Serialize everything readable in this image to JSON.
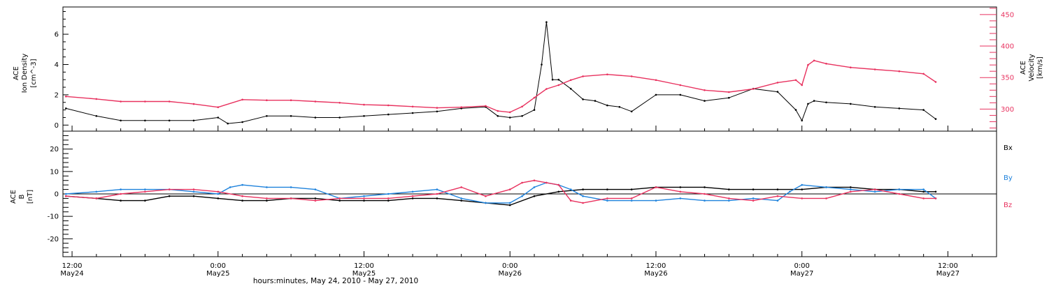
{
  "x_axis": {
    "title": "hours:minutes, May 24, 2010 - May 27, 2010",
    "ticks": [
      {
        "time": "12:00",
        "day": "May24",
        "hour": 12
      },
      {
        "time": "0:00",
        "day": "May25",
        "hour": 24
      },
      {
        "time": "12:00",
        "day": "May25",
        "hour": 36
      },
      {
        "time": "0:00",
        "day": "May26",
        "hour": 48
      },
      {
        "time": "12:00",
        "day": "May26",
        "hour": 60
      },
      {
        "time": "0:00",
        "day": "May27",
        "hour": 72
      },
      {
        "time": "12:00",
        "day": "May27",
        "hour": 84
      }
    ]
  },
  "chart_data": [
    {
      "type": "scatter",
      "panel": "plasma",
      "xlim_hours": [
        11.25,
        88
      ],
      "x_unit": "hours since 2010-05-24 00:00 UT",
      "left_axis": {
        "label_lines": [
          "ACE",
          "Ion Density"
        ],
        "unit": "[cm^-3]",
        "ylim": [
          -0.4,
          7.8
        ],
        "ticks": [
          0,
          2,
          4,
          6
        ]
      },
      "right_axis": {
        "label_lines": [
          "ACE",
          "Velocity"
        ],
        "unit": "[km/s]",
        "ylim": [
          265,
          462
        ],
        "ticks": [
          300,
          350,
          400,
          450
        ],
        "color": "#e8325f"
      },
      "series": [
        {
          "quantity": "ion density",
          "axis": "left",
          "color": "#000000",
          "x": [
            11.5,
            14,
            16,
            18,
            20,
            22,
            24,
            24.8,
            26,
            28,
            30,
            32,
            34,
            36,
            38,
            40,
            42,
            44,
            46,
            47,
            48,
            49,
            50,
            50.6,
            51,
            51.5,
            52,
            53,
            54,
            55,
            56,
            57,
            58,
            60,
            62,
            64,
            66,
            68,
            70,
            71.5,
            72,
            72.5,
            73,
            74,
            76,
            78,
            80,
            82,
            83
          ],
          "y": [
            1.1,
            0.6,
            0.3,
            0.3,
            0.3,
            0.3,
            0.5,
            0.1,
            0.2,
            0.6,
            0.6,
            0.5,
            0.5,
            0.6,
            0.7,
            0.8,
            0.9,
            1.1,
            1.2,
            0.6,
            0.5,
            0.6,
            1.0,
            4.0,
            6.8,
            3.0,
            3.0,
            2.4,
            1.7,
            1.6,
            1.3,
            1.2,
            0.9,
            2.0,
            2.0,
            1.6,
            1.8,
            2.4,
            2.2,
            1.0,
            0.3,
            1.4,
            1.6,
            1.5,
            1.4,
            1.2,
            1.1,
            1.0,
            0.4
          ]
        },
        {
          "quantity": "proton speed",
          "axis": "right",
          "color": "#e8325f",
          "x": [
            11.5,
            14,
            16,
            18,
            20,
            22,
            24,
            26,
            28,
            30,
            32,
            34,
            36,
            38,
            40,
            42,
            44,
            46,
            47,
            48,
            49,
            50,
            51,
            52,
            53,
            54,
            56,
            58,
            60,
            62,
            64,
            66,
            68,
            70,
            71.5,
            72,
            72.5,
            73,
            74,
            76,
            78,
            80,
            82,
            83
          ],
          "y": [
            320,
            316,
            312,
            312,
            312,
            308,
            303,
            315,
            314,
            314,
            312,
            310,
            307,
            306,
            304,
            302,
            303,
            305,
            297,
            295,
            304,
            318,
            332,
            338,
            346,
            352,
            355,
            352,
            346,
            338,
            330,
            327,
            332,
            342,
            346,
            338,
            370,
            377,
            372,
            366,
            363,
            360,
            356,
            343
          ]
        }
      ]
    },
    {
      "type": "scatter",
      "panel": "magnetic field",
      "xlim_hours": [
        11.25,
        88
      ],
      "x_unit": "hours since 2010-05-24 00:00 UT",
      "y_axis": {
        "label_lines": [
          "ACE",
          "B"
        ],
        "unit": "[nT]",
        "ylim": [
          -28,
          28
        ],
        "ticks": [
          -20,
          -10,
          0,
          10,
          20
        ]
      },
      "zero_line": true,
      "series": [
        {
          "name": "Bx",
          "color": "#000000",
          "x": [
            11.5,
            14,
            16,
            18,
            20,
            22,
            24,
            26,
            28,
            30,
            32,
            34,
            36,
            38,
            40,
            42,
            44,
            46,
            48,
            50,
            52,
            54,
            56,
            58,
            60,
            62,
            64,
            66,
            68,
            70,
            72,
            74,
            76,
            78,
            80,
            82,
            83
          ],
          "y": [
            -1,
            -2,
            -3,
            -3,
            -1,
            -1,
            -2,
            -3,
            -3,
            -2,
            -2,
            -3,
            -3,
            -3,
            -2,
            -2,
            -3,
            -4,
            -5,
            -1,
            1,
            2,
            2,
            2,
            3,
            3,
            3,
            2,
            2,
            2,
            2,
            3,
            3,
            2,
            2,
            1,
            1
          ]
        },
        {
          "name": "By",
          "color": "#1e82dc",
          "x": [
            11.5,
            14,
            16,
            18,
            20,
            22,
            24,
            25,
            26,
            28,
            30,
            32,
            34,
            36,
            38,
            40,
            42,
            44,
            46,
            48,
            49,
            50,
            51,
            52,
            53,
            54,
            56,
            58,
            60,
            62,
            64,
            66,
            68,
            70,
            71,
            72,
            74,
            76,
            78,
            80,
            82,
            83
          ],
          "y": [
            0,
            1,
            2,
            2,
            2,
            1,
            0,
            3,
            4,
            3,
            3,
            2,
            -2,
            -1,
            0,
            1,
            2,
            -2,
            -4,
            -4,
            -1,
            3,
            5,
            4,
            2,
            -1,
            -3,
            -3,
            -3,
            -2,
            -3,
            -3,
            -2,
            -3,
            1,
            4,
            3,
            2,
            1,
            2,
            2,
            -2
          ]
        },
        {
          "name": "Bz",
          "color": "#e8325f",
          "x": [
            11.5,
            14,
            16,
            18,
            20,
            22,
            24,
            26,
            28,
            30,
            32,
            34,
            36,
            38,
            40,
            42,
            44,
            46,
            48,
            49,
            50,
            51,
            52,
            53,
            54,
            56,
            58,
            60,
            62,
            64,
            66,
            68,
            70,
            72,
            74,
            76,
            78,
            80,
            82,
            83
          ],
          "y": [
            -1,
            -2,
            0,
            1,
            2,
            2,
            1,
            -1,
            -2,
            -2,
            -3,
            -2,
            -2,
            -2,
            -1,
            0,
            3,
            -1,
            2,
            5,
            6,
            5,
            4,
            -3,
            -4,
            -2,
            -2,
            3,
            1,
            0,
            -2,
            -3,
            -1,
            -2,
            -2,
            1,
            2,
            0,
            -2,
            -2
          ]
        }
      ],
      "legend": [
        "Bx",
        "By",
        "Bz"
      ]
    }
  ]
}
